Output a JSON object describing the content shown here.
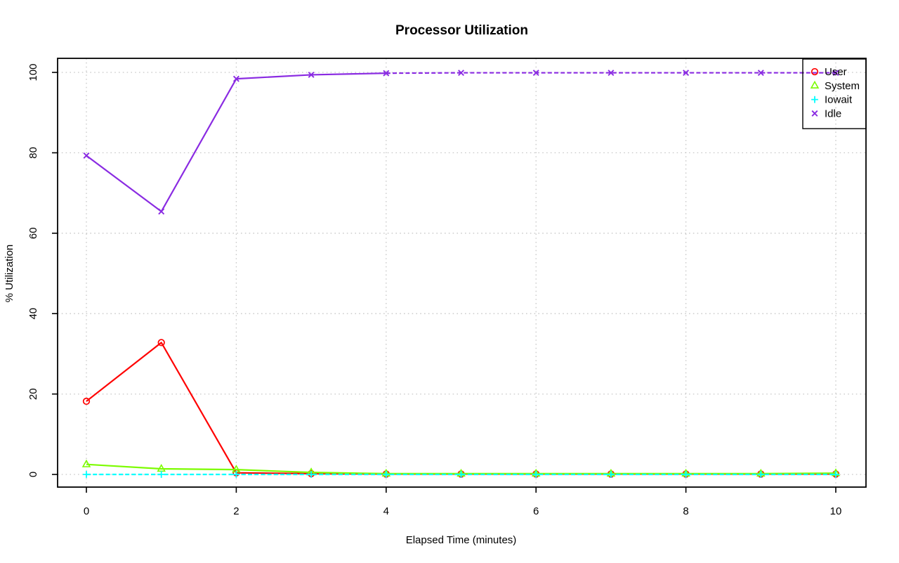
{
  "page": {
    "background": "#ffffff"
  },
  "chart_data": {
    "type": "line",
    "title": "Processor Utilization",
    "xlabel": "Elapsed Time (minutes)",
    "ylabel": "% Utilization",
    "x": [
      0,
      1,
      2,
      3,
      4,
      5,
      6,
      7,
      8,
      9,
      10
    ],
    "xlim": [
      0,
      10
    ],
    "ylim": [
      0,
      100
    ],
    "x_ticks": [
      0,
      2,
      4,
      6,
      8,
      10
    ],
    "y_ticks": [
      0,
      20,
      40,
      60,
      80,
      100
    ],
    "grid": {
      "enabled": true,
      "style": "dotted",
      "color": "#c8c8c8",
      "at_x_ticks": true,
      "at_y_ticks": true
    },
    "legend": {
      "position": "top-right",
      "border": "#000000",
      "entries": [
        "User",
        "System",
        "Iowait",
        "Idle"
      ]
    },
    "series": [
      {
        "name": "User",
        "color": "#ff0000",
        "marker": "circle-open",
        "line_style": "solid",
        "values": [
          18.2,
          32.8,
          0.4,
          0.2,
          0.1,
          0.1,
          0.1,
          0.1,
          0.1,
          0.1,
          0.1
        ]
      },
      {
        "name": "System",
        "color": "#7cfc00",
        "marker": "triangle-open",
        "line_style": "solid",
        "values": [
          2.5,
          1.4,
          1.2,
          0.5,
          0.2,
          0.2,
          0.2,
          0.2,
          0.2,
          0.2,
          0.3
        ]
      },
      {
        "name": "Iowait",
        "color": "#00ffff",
        "marker": "plus",
        "line_style": "dashed",
        "values": [
          0,
          0,
          0,
          0,
          0,
          0,
          0,
          0,
          0,
          0,
          0
        ]
      },
      {
        "name": "Idle",
        "color": "#8a2be2",
        "marker": "x",
        "line_style": "solid-then-dashed",
        "dash_from_index": 4,
        "values": [
          79.3,
          65.4,
          98.4,
          99.4,
          99.8,
          99.9,
          99.9,
          99.9,
          99.9,
          99.9,
          99.9
        ]
      }
    ]
  },
  "colors": {
    "axis": "#000000",
    "grid": "#c8c8c8",
    "background": "#ffffff"
  }
}
